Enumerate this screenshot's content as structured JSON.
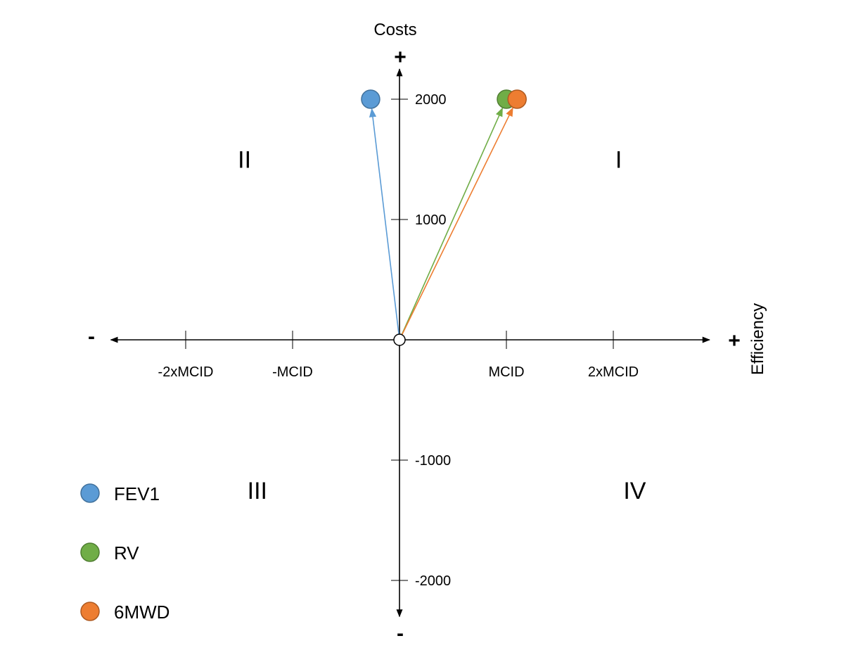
{
  "chart_data": {
    "type": "scatter",
    "x_title": "Efficiency",
    "y_title": "Costs",
    "axis_signs": {
      "y_positive": "+",
      "y_negative": "-",
      "x_positive": "+",
      "x_negative": "-"
    },
    "x_ticks": [
      {
        "value": -2,
        "label": "-2xMCID"
      },
      {
        "value": -1,
        "label": "-MCID"
      },
      {
        "value": 1,
        "label": "MCID"
      },
      {
        "value": 2,
        "label": "2xMCID"
      }
    ],
    "y_ticks": [
      {
        "value": 2000,
        "label": "2000"
      },
      {
        "value": 1000,
        "label": "1000"
      },
      {
        "value": -1000,
        "label": "-1000"
      },
      {
        "value": -2000,
        "label": "-2000"
      }
    ],
    "xlim": [
      -2.7,
      2.9
    ],
    "ylim": [
      -2300,
      2250
    ],
    "quadrants": [
      {
        "label": "I",
        "x": 2.05,
        "y": 1500
      },
      {
        "label": "II",
        "x": -1.45,
        "y": 1500
      },
      {
        "label": "III",
        "x": -1.33,
        "y": -1250
      },
      {
        "label": "IV",
        "x": 2.2,
        "y": -1250
      }
    ],
    "origin": {
      "x": 0,
      "y": 0
    },
    "series": [
      {
        "name": "FEV1",
        "color": "#5b9bd5",
        "stroke": "#41719c",
        "x": -0.27,
        "y": 2000
      },
      {
        "name": "RV",
        "color": "#70ad47",
        "stroke": "#507e32",
        "x": 1.0,
        "y": 2000
      },
      {
        "name": "6MWD",
        "color": "#ed7d31",
        "stroke": "#ae5a21",
        "x": 1.1,
        "y": 2000
      }
    ],
    "legend_position": "bottom-left",
    "grid": false
  }
}
